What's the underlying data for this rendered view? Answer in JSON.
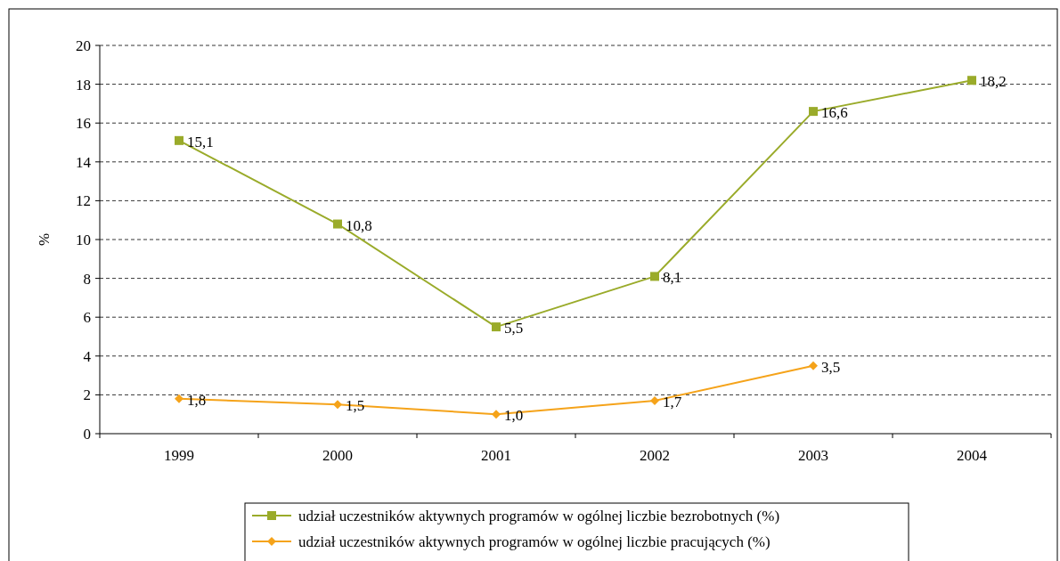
{
  "chart_data": {
    "type": "line",
    "ylabel": "%",
    "categories": [
      "1999",
      "2000",
      "2001",
      "2002",
      "2003",
      "2004"
    ],
    "series": [
      {
        "name": "udział uczestników aktywnych programów w ogólnej liczbie bezrobotnych (%)",
        "color": "#9aab2a",
        "marker": "square",
        "values": [
          15.1,
          10.8,
          5.5,
          8.1,
          16.6,
          18.2
        ],
        "value_labels": [
          "15,1",
          "10,8",
          "5,5",
          "8,1",
          "16,6",
          "18,2"
        ]
      },
      {
        "name": "udział uczestników aktywnych programów w ogólnej liczbie pracujących (%)",
        "color": "#f5a31a",
        "marker": "diamond",
        "values": [
          1.8,
          1.5,
          1.0,
          1.7,
          3.5,
          null
        ],
        "value_labels": [
          "1,8",
          "1,5",
          "1,0",
          "1,7",
          "3,5",
          null
        ]
      }
    ],
    "ylim": [
      0,
      20
    ],
    "yticks": [
      0,
      2,
      4,
      6,
      8,
      10,
      12,
      14,
      16,
      18,
      20
    ],
    "grid": "y",
    "legend": "bottom"
  }
}
